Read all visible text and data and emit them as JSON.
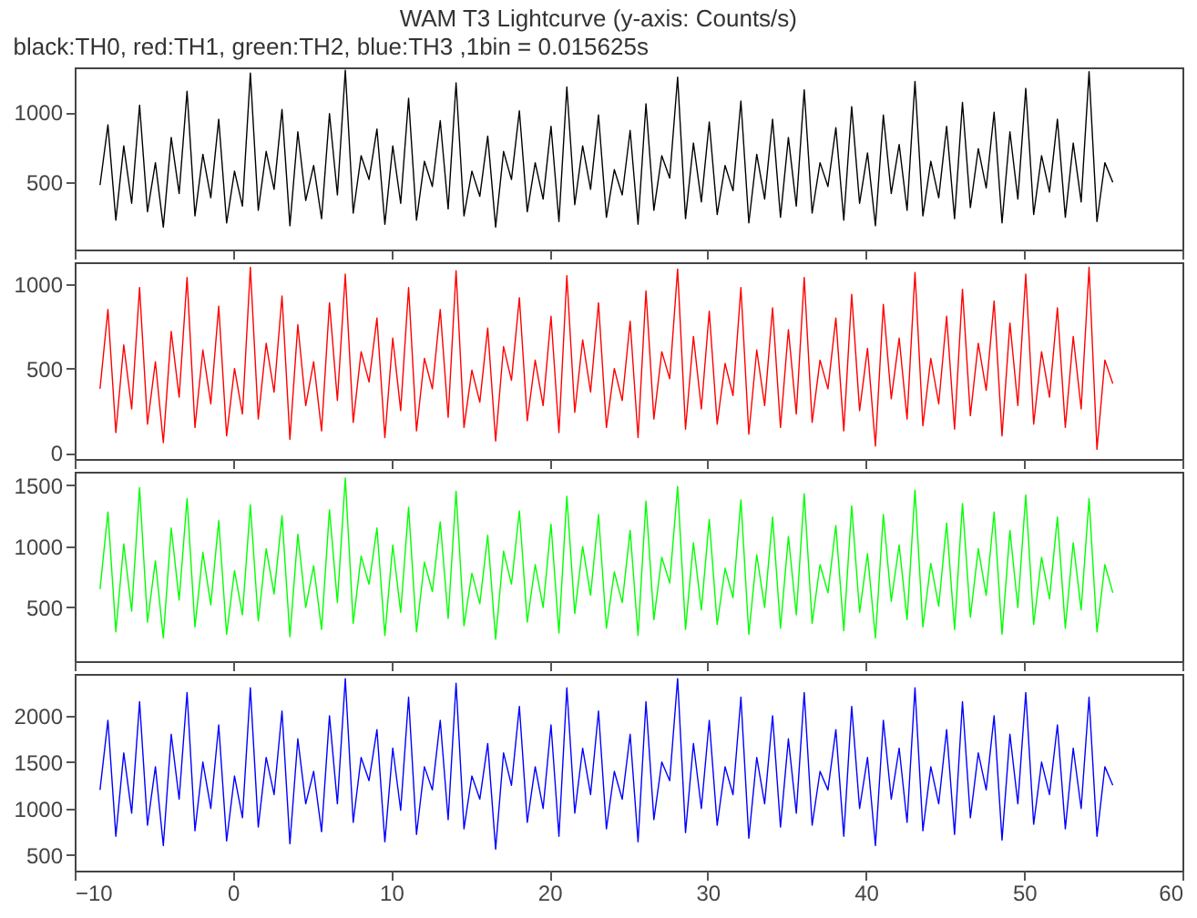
{
  "chart_data": [
    {
      "type": "line",
      "title": "WAM T3 Lightcurve (y-axis: Counts/s)",
      "subtitle": "black:TH0, red:TH1, green:TH2, blue:TH3 ,1bin = 0.015625s",
      "xlim": [
        -10,
        60
      ],
      "xticks": [
        -10,
        0,
        10,
        20,
        30,
        40,
        50,
        60
      ],
      "ylim": [
        20,
        1320
      ],
      "yticks": [
        500,
        1000
      ],
      "tick_labels": "y",
      "series": [
        {
          "color": "#000000",
          "x": [
            -8.4,
            -7.9,
            -7.4,
            -6.9,
            -6.4,
            -5.9,
            -5.4,
            -4.9,
            -4.4,
            -3.9,
            -3.4,
            -2.9,
            -2.4,
            -1.9,
            -1.4,
            -0.9,
            -0.4,
            0.1,
            0.6,
            1.1,
            1.6,
            2.1,
            2.6,
            3.1,
            3.6,
            4.1,
            4.6,
            5.1,
            5.6,
            6.1,
            6.6,
            7.1,
            7.6,
            8.1,
            8.6,
            9.1,
            9.6,
            10.1,
            10.6,
            11.1,
            11.6,
            12.1,
            12.6,
            13.1,
            13.6,
            14.1,
            14.6,
            15.1,
            15.6,
            16.1,
            16.6,
            17.1,
            17.6,
            18.1,
            18.6,
            19.1,
            19.6,
            20.1,
            20.6,
            21.1,
            21.6,
            22.1,
            22.6,
            23.1,
            23.6,
            24.1,
            24.6,
            25.1,
            25.6,
            26.1,
            26.6,
            27.1,
            27.6,
            28.1,
            28.6,
            29.1,
            29.6,
            30.1,
            30.6,
            31.1,
            31.6,
            32.1,
            32.6,
            33.1,
            33.6,
            34.1,
            34.6,
            35.1,
            35.6,
            36.1,
            36.6,
            37.1,
            37.6,
            38.1,
            38.6,
            39.1,
            39.6,
            40.1,
            40.6,
            41.1,
            41.6,
            42.1,
            42.6,
            43.1,
            43.6,
            44.1,
            44.6,
            45.1,
            45.6,
            46.1,
            46.6,
            47.1,
            47.6,
            48.1,
            48.6,
            49.1,
            49.6,
            50.1,
            50.6,
            51.1,
            51.6,
            52.1,
            52.6,
            53.1,
            53.6,
            54.1,
            54.6,
            55.1,
            55.6
          ],
          "values": [
            480,
            910,
            230,
            760,
            350,
            1050,
            290,
            640,
            180,
            820,
            420,
            1150,
            260,
            700,
            390,
            950,
            210,
            580,
            330,
            1280,
            300,
            720,
            450,
            1020,
            190,
            860,
            370,
            620,
            240,
            990,
            410,
            1300,
            280,
            690,
            520,
            880,
            200,
            760,
            350,
            1100,
            230,
            650,
            470,
            940,
            310,
            1210,
            260,
            580,
            400,
            830,
            180,
            720,
            520,
            1010,
            290,
            640,
            380,
            900,
            220,
            1180,
            340,
            760,
            450,
            980,
            250,
            590,
            410,
            870,
            200,
            1060,
            300,
            690,
            530,
            1250,
            240,
            780,
            360,
            930,
            270,
            620,
            440,
            1080,
            210,
            700,
            380,
            950,
            250,
            820,
            330,
            1160,
            280,
            640,
            470,
            890,
            230,
            1040,
            350,
            710,
            190,
            980,
            420,
            770,
            300,
            1220,
            260,
            650,
            390,
            900,
            240,
            1070,
            320,
            740,
            460,
            1000,
            210,
            860,
            380,
            1170,
            270,
            690,
            430,
            950,
            250,
            780,
            360,
            1290,
            220,
            640,
            500
          ]
        }
      ]
    },
    {
      "type": "line",
      "xlim": [
        -10,
        60
      ],
      "xticks": [
        -10,
        0,
        10,
        20,
        30,
        40,
        50,
        60
      ],
      "ylim": [
        -37,
        1130
      ],
      "yticks": [
        0,
        500,
        1000
      ],
      "tick_labels": "y",
      "series": [
        {
          "color": "#ff0000",
          "x": [
            -8.4,
            -7.9,
            -7.4,
            -6.9,
            -6.4,
            -5.9,
            -5.4,
            -4.9,
            -4.4,
            -3.9,
            -3.4,
            -2.9,
            -2.4,
            -1.9,
            -1.4,
            -0.9,
            -0.4,
            0.1,
            0.6,
            1.1,
            1.6,
            2.1,
            2.6,
            3.1,
            3.6,
            4.1,
            4.6,
            5.1,
            5.6,
            6.1,
            6.6,
            7.1,
            7.6,
            8.1,
            8.6,
            9.1,
            9.6,
            10.1,
            10.6,
            11.1,
            11.6,
            12.1,
            12.6,
            13.1,
            13.6,
            14.1,
            14.6,
            15.1,
            15.6,
            16.1,
            16.6,
            17.1,
            17.6,
            18.1,
            18.6,
            19.1,
            19.6,
            20.1,
            20.6,
            21.1,
            21.6,
            22.1,
            22.6,
            23.1,
            23.6,
            24.1,
            24.6,
            25.1,
            25.6,
            26.1,
            26.6,
            27.1,
            27.6,
            28.1,
            28.6,
            29.1,
            29.6,
            30.1,
            30.6,
            31.1,
            31.6,
            32.1,
            32.6,
            33.1,
            33.6,
            34.1,
            34.6,
            35.1,
            35.6,
            36.1,
            36.6,
            37.1,
            37.6,
            38.1,
            38.6,
            39.1,
            39.6,
            40.1,
            40.6,
            41.1,
            41.6,
            42.1,
            42.6,
            43.1,
            43.6,
            44.1,
            44.6,
            45.1,
            45.6,
            46.1,
            46.6,
            47.1,
            47.6,
            48.1,
            48.6,
            49.1,
            49.6,
            50.1,
            50.6,
            51.1,
            51.6,
            52.1,
            52.6,
            53.1,
            53.6,
            54.1,
            54.6,
            55.1,
            55.6
          ],
          "values": [
            380,
            850,
            120,
            640,
            260,
            980,
            170,
            540,
            60,
            720,
            330,
            1040,
            150,
            610,
            290,
            870,
            100,
            500,
            230,
            1100,
            200,
            650,
            360,
            930,
            80,
            760,
            280,
            540,
            130,
            890,
            310,
            1060,
            180,
            600,
            420,
            800,
            90,
            680,
            250,
            980,
            130,
            560,
            380,
            850,
            210,
            1080,
            150,
            490,
            300,
            740,
            70,
            630,
            430,
            920,
            190,
            550,
            280,
            810,
            120,
            1050,
            240,
            670,
            360,
            890,
            150,
            500,
            310,
            780,
            90,
            960,
            200,
            600,
            440,
            1090,
            140,
            690,
            260,
            840,
            170,
            530,
            340,
            980,
            110,
            610,
            280,
            860,
            150,
            730,
            230,
            1040,
            180,
            550,
            380,
            800,
            130,
            940,
            250,
            620,
            40,
            880,
            320,
            680,
            200,
            1070,
            160,
            560,
            290,
            810,
            140,
            970,
            220,
            650,
            370,
            900,
            100,
            770,
            280,
            1060,
            170,
            600,
            330,
            860,
            150,
            690,
            260,
            1100,
            20,
            550,
            410
          ]
        }
      ]
    },
    {
      "type": "line",
      "xlim": [
        -10,
        60
      ],
      "xticks": [
        -10,
        0,
        10,
        20,
        30,
        40,
        50,
        60
      ],
      "ylim": [
        60,
        1610
      ],
      "yticks": [
        500,
        1000,
        1500
      ],
      "tick_labels": "y",
      "series": [
        {
          "color": "#00ff00",
          "x": [
            -8.4,
            -7.9,
            -7.4,
            -6.9,
            -6.4,
            -5.9,
            -5.4,
            -4.9,
            -4.4,
            -3.9,
            -3.4,
            -2.9,
            -2.4,
            -1.9,
            -1.4,
            -0.9,
            -0.4,
            0.1,
            0.6,
            1.1,
            1.6,
            2.1,
            2.6,
            3.1,
            3.6,
            4.1,
            4.6,
            5.1,
            5.6,
            6.1,
            6.6,
            7.1,
            7.6,
            8.1,
            8.6,
            9.1,
            9.6,
            10.1,
            10.6,
            11.1,
            11.6,
            12.1,
            12.6,
            13.1,
            13.6,
            14.1,
            14.6,
            15.1,
            15.6,
            16.1,
            16.6,
            17.1,
            17.6,
            18.1,
            18.6,
            19.1,
            19.6,
            20.1,
            20.6,
            21.1,
            21.6,
            22.1,
            22.6,
            23.1,
            23.6,
            24.1,
            24.6,
            25.1,
            25.6,
            26.1,
            26.6,
            27.1,
            27.6,
            28.1,
            28.6,
            29.1,
            29.6,
            30.1,
            30.6,
            31.1,
            31.6,
            32.1,
            32.6,
            33.1,
            33.6,
            34.1,
            34.6,
            35.1,
            35.6,
            36.1,
            36.6,
            37.1,
            37.6,
            38.1,
            38.6,
            39.1,
            39.6,
            40.1,
            40.6,
            41.1,
            41.6,
            42.1,
            42.6,
            43.1,
            43.6,
            44.1,
            44.6,
            45.1,
            45.6,
            46.1,
            46.6,
            47.1,
            47.6,
            48.1,
            48.6,
            49.1,
            49.6,
            50.1,
            50.6,
            51.1,
            51.6,
            52.1,
            52.6,
            53.1,
            53.6,
            54.1,
            54.6,
            55.1,
            55.6
          ],
          "values": [
            650,
            1280,
            300,
            1020,
            470,
            1480,
            380,
            880,
            250,
            1150,
            560,
            1390,
            340,
            950,
            520,
            1210,
            280,
            800,
            440,
            1340,
            390,
            980,
            610,
            1250,
            260,
            1100,
            500,
            840,
            320,
            1300,
            540,
            1560,
            370,
            920,
            690,
            1150,
            270,
            1010,
            460,
            1320,
            300,
            870,
            630,
            1200,
            410,
            1450,
            350,
            780,
            530,
            1090,
            240,
            960,
            690,
            1290,
            380,
            850,
            500,
            1180,
            290,
            1410,
            450,
            1000,
            600,
            1260,
            330,
            790,
            540,
            1130,
            270,
            1370,
            400,
            910,
            700,
            1490,
            320,
            1030,
            480,
            1220,
            360,
            820,
            580,
            1380,
            280,
            930,
            500,
            1240,
            330,
            1080,
            440,
            1430,
            370,
            850,
            620,
            1170,
            310,
            1330,
            460,
            940,
            250,
            1260,
            550,
            1010,
            400,
            1460,
            340,
            860,
            510,
            1190,
            320,
            1350,
            420,
            980,
            600,
            1280,
            280,
            1130,
            500,
            1420,
            360,
            910,
            570,
            1240,
            330,
            1030,
            480,
            1390,
            300,
            850,
            620
          ]
        }
      ]
    },
    {
      "type": "line",
      "xlim": [
        -10,
        60
      ],
      "xticks": [
        -10,
        0,
        10,
        20,
        30,
        40,
        50,
        60
      ],
      "ylim": [
        330,
        2450
      ],
      "yticks": [
        500,
        1000,
        1500,
        2000
      ],
      "series": [
        {
          "color": "#0000ff",
          "x": [
            -8.4,
            -7.9,
            -7.4,
            -6.9,
            -6.4,
            -5.9,
            -5.4,
            -4.9,
            -4.4,
            -3.9,
            -3.4,
            -2.9,
            -2.4,
            -1.9,
            -1.4,
            -0.9,
            -0.4,
            0.1,
            0.6,
            1.1,
            1.6,
            2.1,
            2.6,
            3.1,
            3.6,
            4.1,
            4.6,
            5.1,
            5.6,
            6.1,
            6.6,
            7.1,
            7.6,
            8.1,
            8.6,
            9.1,
            9.6,
            10.1,
            10.6,
            11.1,
            11.6,
            12.1,
            12.6,
            13.1,
            13.6,
            14.1,
            14.6,
            15.1,
            15.6,
            16.1,
            16.6,
            17.1,
            17.6,
            18.1,
            18.6,
            19.1,
            19.6,
            20.1,
            20.6,
            21.1,
            21.6,
            22.1,
            22.6,
            23.1,
            23.6,
            24.1,
            24.6,
            25.1,
            25.6,
            26.1,
            26.6,
            27.1,
            27.6,
            28.1,
            28.6,
            29.1,
            29.6,
            30.1,
            30.6,
            31.1,
            31.6,
            32.1,
            32.6,
            33.1,
            33.6,
            34.1,
            34.6,
            35.1,
            35.6,
            36.1,
            36.6,
            37.1,
            37.6,
            38.1,
            38.6,
            39.1,
            39.6,
            40.1,
            40.6,
            41.1,
            41.6,
            42.1,
            42.6,
            43.1,
            43.6,
            44.1,
            44.6,
            45.1,
            45.6,
            46.1,
            46.6,
            47.1,
            47.6,
            48.1,
            48.6,
            49.1,
            49.6,
            50.1,
            50.6,
            51.1,
            51.6,
            52.1,
            52.6,
            53.1,
            53.6,
            54.1,
            54.6,
            55.1,
            55.6
          ],
          "values": [
            1200,
            1950,
            700,
            1600,
            950,
            2150,
            820,
            1450,
            600,
            1800,
            1100,
            2250,
            760,
            1500,
            1000,
            1900,
            650,
            1350,
            900,
            2300,
            800,
            1550,
            1150,
            2050,
            620,
            1750,
            1050,
            1400,
            750,
            2000,
            1050,
            2400,
            850,
            1550,
            1300,
            1850,
            640,
            1650,
            980,
            2200,
            720,
            1450,
            1200,
            1950,
            880,
            2350,
            780,
            1350,
            1100,
            1700,
            560,
            1600,
            1250,
            2100,
            850,
            1450,
            1000,
            1900,
            700,
            2300,
            950,
            1650,
            1150,
            2050,
            780,
            1400,
            1100,
            1800,
            640,
            2150,
            880,
            1500,
            1300,
            2400,
            740,
            1700,
            1000,
            1950,
            820,
            1450,
            1150,
            2200,
            680,
            1550,
            1050,
            2000,
            800,
            1750,
            950,
            2250,
            820,
            1400,
            1200,
            1850,
            700,
            2100,
            1000,
            1550,
            600,
            1950,
            1100,
            1650,
            850,
            2300,
            760,
            1450,
            1050,
            1850,
            720,
            2150,
            900,
            1600,
            1200,
            2000,
            660,
            1800,
            1050,
            2250,
            830,
            1500,
            1150,
            1900,
            780,
            1650,
            1000,
            2200,
            700,
            1450,
            1250
          ]
        }
      ]
    }
  ]
}
